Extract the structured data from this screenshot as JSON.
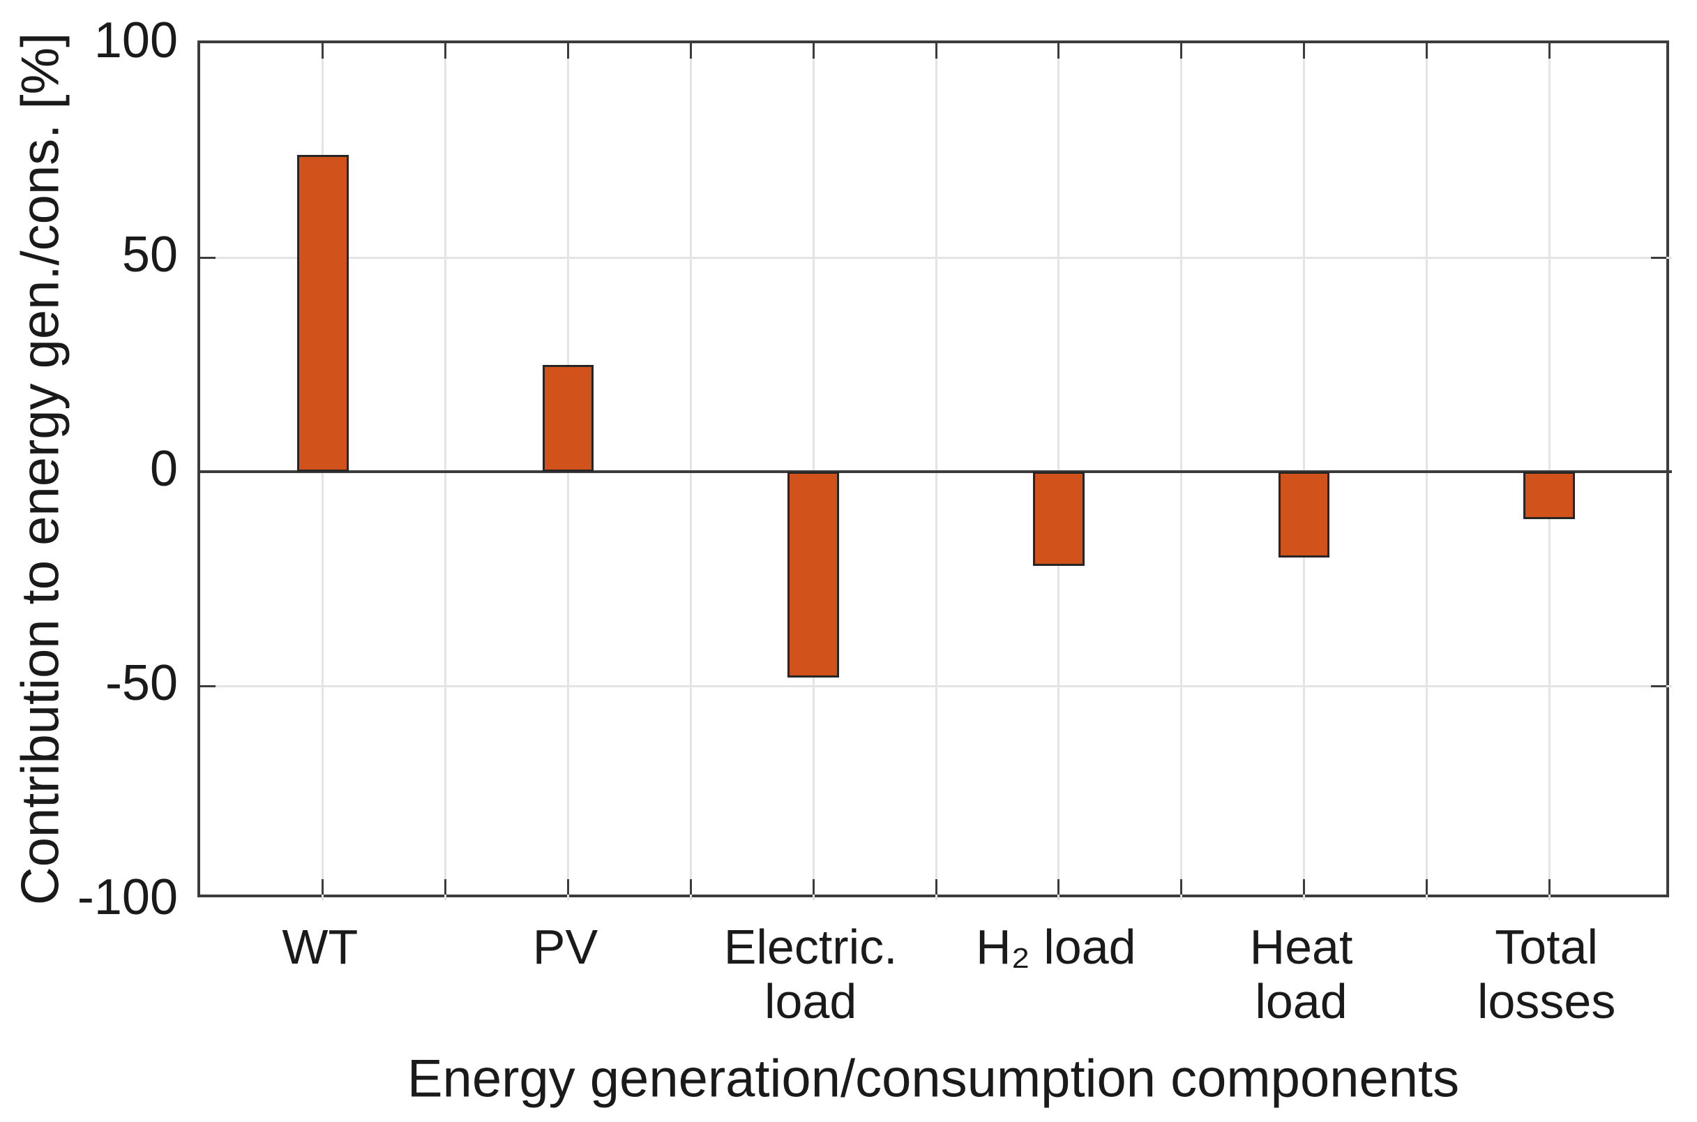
{
  "figure": {
    "background": "#ffffff"
  },
  "chart_data": {
    "type": "bar",
    "title": "",
    "xlabel": "Energy generation/consumption components",
    "ylabel": "Contribution to energy gen./cons. [%]",
    "categories": [
      "WT",
      "PV",
      "Electric. load",
      "H₂ load",
      "Heat load",
      "Total losses"
    ],
    "category_label_lines": [
      [
        "WT"
      ],
      [
        "PV"
      ],
      [
        "Electric.",
        "load"
      ],
      [
        "H₂ load"
      ],
      [
        "Heat",
        "load"
      ],
      [
        "Total",
        "losses"
      ]
    ],
    "series": [
      {
        "name": "Contribution to energy gen./cons. [%]",
        "values": [
          74,
          25,
          -48,
          -22,
          -20,
          -11
        ]
      }
    ],
    "values": [
      74,
      25,
      -48,
      -22,
      -20,
      -11
    ],
    "ylim": [
      -100,
      100
    ],
    "yticks": [
      -100,
      -50,
      0,
      50,
      100
    ],
    "ytick_labels": [
      "-100",
      "-50",
      "0",
      "50",
      "100"
    ],
    "grid": "on",
    "legend": "none",
    "bar_width_fraction": 0.21,
    "bar_color": "#d2521b",
    "bar_edge_color": "#262626",
    "axis_color": "#3c3c3c",
    "grid_color": "#e4e4e4",
    "text_color": "#1a1a1a"
  }
}
